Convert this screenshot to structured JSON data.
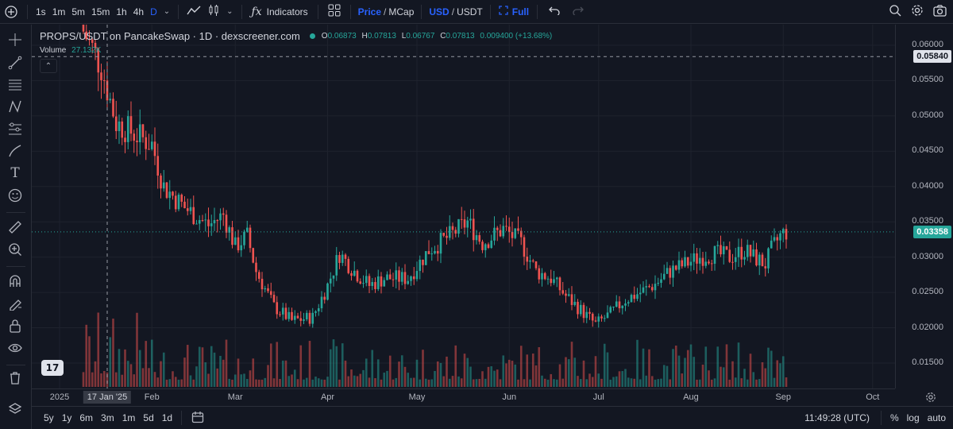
{
  "toolbar": {
    "timeframes": [
      "1s",
      "1m",
      "5m",
      "15m",
      "1h",
      "4h",
      "D"
    ],
    "active_timeframe": "D",
    "indicators_label": "Indicators",
    "price_label": "Price",
    "mcap_label": "MCap",
    "usd_label": "USD",
    "usdt_label": "USDT",
    "full_label": "Full",
    "slash": "/"
  },
  "legend": {
    "title": "PROPS/USDT on PancakeSwap · 1D · dexscreener.com",
    "o_label": "O",
    "o_value": "0.06873",
    "h_label": "H",
    "h_value": "0.07813",
    "l_label": "L",
    "l_value": "0.06767",
    "c_label": "C",
    "c_value": "0.07813",
    "change": "0.009400 (+13.68%)",
    "volume_label": "Volume",
    "volume_value": "27.132K",
    "up_color": "#26a69a",
    "down_color": "#ef5350"
  },
  "price_scale": {
    "ticks": [
      "0.06000",
      "0.05500",
      "0.05000",
      "0.04500",
      "0.04000",
      "0.03500",
      "0.03000",
      "0.02500",
      "0.02000",
      "0.01500"
    ],
    "crosshair_value": "0.05840",
    "last_value": "0.03358"
  },
  "time_scale": {
    "labels": [
      "2025",
      "Feb",
      "Mar",
      "Apr",
      "May",
      "Jun",
      "Jul",
      "Aug",
      "Sep",
      "Oct"
    ],
    "crosshair_label": "17 Jan '25"
  },
  "bottom": {
    "ranges": [
      "5y",
      "1y",
      "6m",
      "3m",
      "1m",
      "5d",
      "1d"
    ],
    "clock": "11:49:28 (UTC)",
    "percent_label": "%",
    "log_label": "log",
    "auto_label": "auto"
  },
  "chart_data": {
    "type": "candlestick",
    "title": "PROPS/USDT on PancakeSwap · 1D · dexscreener.com",
    "ylim": [
      0.012,
      0.062
    ],
    "x_labels": [
      "2025",
      "Feb",
      "Mar",
      "Apr",
      "May",
      "Jun",
      "Jul",
      "Aug",
      "Sep",
      "Oct"
    ],
    "close_anchors": [
      [
        "2025-01-09",
        0.062
      ],
      [
        "2025-01-15",
        0.057
      ],
      [
        "2025-01-20",
        0.049
      ],
      [
        "2025-02-01",
        0.046
      ],
      [
        "2025-02-05",
        0.04
      ],
      [
        "2025-02-12",
        0.037
      ],
      [
        "2025-02-20",
        0.0345
      ],
      [
        "2025-02-25",
        0.036
      ],
      [
        "2025-03-01",
        0.0315
      ],
      [
        "2025-03-05",
        0.033
      ],
      [
        "2025-03-08",
        0.028
      ],
      [
        "2025-03-14",
        0.023
      ],
      [
        "2025-03-20",
        0.021
      ],
      [
        "2025-03-27",
        0.0215
      ],
      [
        "2025-04-01",
        0.026
      ],
      [
        "2025-04-05",
        0.0305
      ],
      [
        "2025-04-10",
        0.028
      ],
      [
        "2025-04-15",
        0.026
      ],
      [
        "2025-04-20",
        0.027
      ],
      [
        "2025-04-28",
        0.027
      ],
      [
        "2025-05-05",
        0.031
      ],
      [
        "2025-05-12",
        0.033
      ],
      [
        "2025-05-18",
        0.035
      ],
      [
        "2025-05-23",
        0.032
      ],
      [
        "2025-05-30",
        0.034
      ],
      [
        "2025-06-05",
        0.032
      ],
      [
        "2025-06-10",
        0.028
      ],
      [
        "2025-06-15",
        0.027
      ],
      [
        "2025-06-20",
        0.0245
      ],
      [
        "2025-06-25",
        0.0225
      ],
      [
        "2025-06-30",
        0.0205
      ],
      [
        "2025-07-05",
        0.022
      ],
      [
        "2025-07-10",
        0.024
      ],
      [
        "2025-07-15",
        0.025
      ],
      [
        "2025-07-20",
        0.0262
      ],
      [
        "2025-07-25",
        0.028
      ],
      [
        "2025-07-30",
        0.029
      ],
      [
        "2025-08-04",
        0.03
      ],
      [
        "2025-08-09",
        0.0305
      ],
      [
        "2025-08-14",
        0.03
      ],
      [
        "2025-08-19",
        0.031
      ],
      [
        "2025-08-22",
        0.03
      ],
      [
        "2025-08-26",
        0.029
      ],
      [
        "2025-08-28",
        0.031
      ],
      [
        "2025-08-31",
        0.033
      ],
      [
        "2025-09-02",
        0.0336
      ]
    ],
    "volume_scale": "relative"
  }
}
